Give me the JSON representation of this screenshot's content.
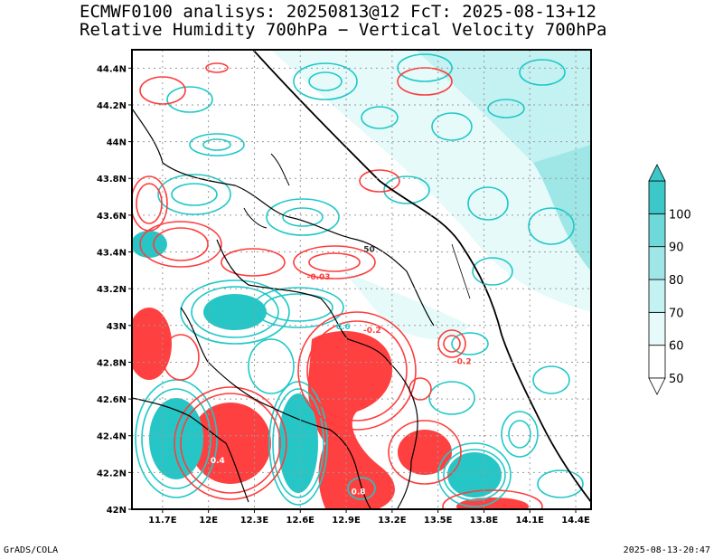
{
  "title": {
    "line1": "ECMWF0100 analisys: 20250813@12 FcT: 2025-08-13+12",
    "line2": "Relative Humidity 700hPa − Vertical Velocity 700hPa"
  },
  "footer": {
    "left": "GrADS/COLA",
    "right": "2025-08-13-20:47"
  },
  "map": {
    "lon_range": [
      11.5,
      14.5
    ],
    "lat_range": [
      42.0,
      44.5
    ],
    "lon_ticks": [
      {
        "value": 11.7,
        "label": "11.7E"
      },
      {
        "value": 12.0,
        "label": "12E"
      },
      {
        "value": 12.3,
        "label": "12.3E"
      },
      {
        "value": 12.6,
        "label": "12.6E"
      },
      {
        "value": 12.9,
        "label": "12.9E"
      },
      {
        "value": 13.2,
        "label": "13.2E"
      },
      {
        "value": 13.5,
        "label": "13.5E"
      },
      {
        "value": 13.8,
        "label": "13.8E"
      },
      {
        "value": 14.1,
        "label": "14.1E"
      },
      {
        "value": 14.4,
        "label": "14.4E"
      }
    ],
    "lat_ticks": [
      {
        "value": 42.0,
        "label": "42N"
      },
      {
        "value": 42.2,
        "label": "42.2N"
      },
      {
        "value": 42.4,
        "label": "42.4N"
      },
      {
        "value": 42.6,
        "label": "42.6N"
      },
      {
        "value": 42.8,
        "label": "42.8N"
      },
      {
        "value": 43.0,
        "label": "43N"
      },
      {
        "value": 43.2,
        "label": "43.2N"
      },
      {
        "value": 43.4,
        "label": "43.4N"
      },
      {
        "value": 43.6,
        "label": "43.6N"
      },
      {
        "value": 43.8,
        "label": "43.8N"
      },
      {
        "value": 44.0,
        "label": "44N"
      },
      {
        "value": 44.2,
        "label": "44.2N"
      },
      {
        "value": 44.4,
        "label": "44.4N"
      }
    ],
    "grid": true,
    "contour_labels": [
      {
        "text": "50",
        "lon": 13.05,
        "lat": 43.4,
        "color": "#333333"
      },
      {
        "text": "-0.2",
        "lon": 13.66,
        "lat": 42.79,
        "color": "#ff3b3b"
      },
      {
        "text": "-0.2",
        "lon": 13.07,
        "lat": 42.96,
        "color": "#ff3b3b"
      },
      {
        "text": "0.6",
        "lon": 12.88,
        "lat": 42.98,
        "color": "#1ec8c8"
      },
      {
        "text": "-0.03",
        "lon": 12.72,
        "lat": 43.25,
        "color": "#ff3b3b"
      },
      {
        "text": "0.4",
        "lon": 12.06,
        "lat": 42.25,
        "color": "#ffffff"
      },
      {
        "text": "0.8",
        "lon": 12.98,
        "lat": 42.08,
        "color": "#ffffff"
      }
    ]
  },
  "colorbar": {
    "levels": [
      "50",
      "60",
      "70",
      "80",
      "90",
      "100"
    ],
    "colors": [
      "#ffffff",
      "#e6fafa",
      "#c4f1f1",
      "#9fe6e6",
      "#6fd8d8",
      "#3cc8c8"
    ]
  },
  "colors": {
    "rh_contour": "#1ec8c8",
    "omega_contour": "#ff3b3b",
    "border": "#000000"
  }
}
